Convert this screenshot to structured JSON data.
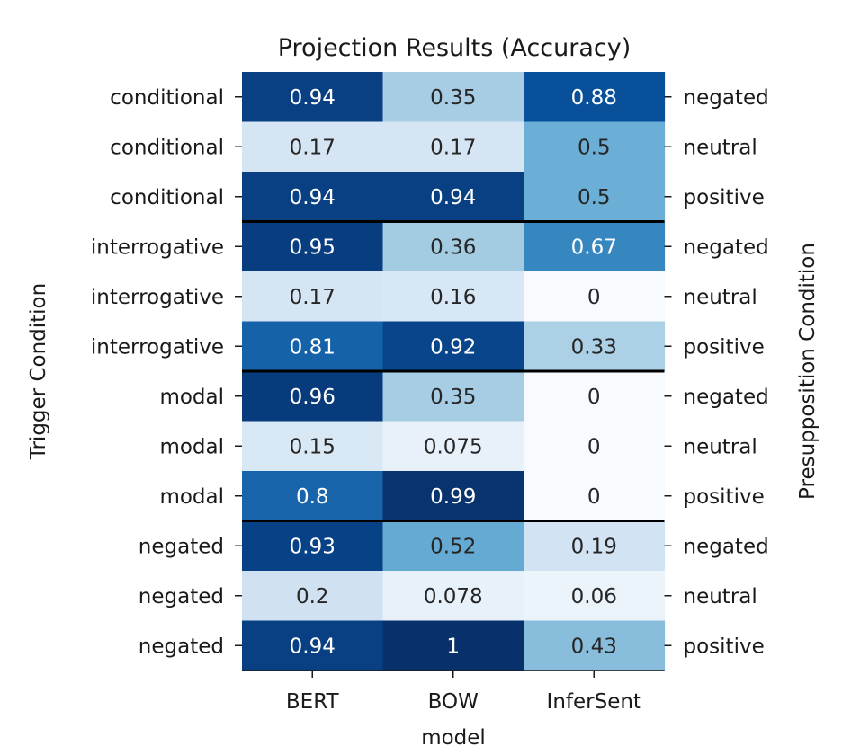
{
  "chart_data": {
    "type": "heatmap",
    "title": "Projection Results (Accuracy)",
    "xlabel": "model",
    "ylabel": "Trigger Condition",
    "ylabel_right": "Presupposition Condition",
    "columns": [
      "BERT",
      "BOW",
      "InferSent"
    ],
    "row_labels_left": [
      "conditional",
      "conditional",
      "conditional",
      "interrogative",
      "interrogative",
      "interrogative",
      "modal",
      "modal",
      "modal",
      "negated",
      "negated",
      "negated"
    ],
    "row_labels_right": [
      "negated",
      "neutral",
      "positive",
      "negated",
      "neutral",
      "positive",
      "negated",
      "neutral",
      "positive",
      "negated",
      "neutral",
      "positive"
    ],
    "values": [
      [
        0.94,
        0.35,
        0.88
      ],
      [
        0.17,
        0.17,
        0.5
      ],
      [
        0.94,
        0.94,
        0.5
      ],
      [
        0.95,
        0.36,
        0.67
      ],
      [
        0.17,
        0.16,
        0
      ],
      [
        0.81,
        0.92,
        0.33
      ],
      [
        0.96,
        0.35,
        0
      ],
      [
        0.15,
        0.075,
        0
      ],
      [
        0.8,
        0.99,
        0
      ],
      [
        0.93,
        0.52,
        0.19
      ],
      [
        0.2,
        0.078,
        0.06
      ],
      [
        0.94,
        1,
        0.43
      ]
    ],
    "cell_labels": [
      [
        "0.94",
        "0.35",
        "0.88"
      ],
      [
        "0.17",
        "0.17",
        "0.5"
      ],
      [
        "0.94",
        "0.94",
        "0.5"
      ],
      [
        "0.95",
        "0.36",
        "0.67"
      ],
      [
        "0.17",
        "0.16",
        "0"
      ],
      [
        "0.81",
        "0.92",
        "0.33"
      ],
      [
        "0.96",
        "0.35",
        "0"
      ],
      [
        "0.15",
        "0.075",
        "0"
      ],
      [
        "0.8",
        "0.99",
        "0"
      ],
      [
        "0.93",
        "0.52",
        "0.19"
      ],
      [
        "0.2",
        "0.078",
        "0.06"
      ],
      [
        "0.94",
        "1",
        "0.43"
      ]
    ],
    "group_size": 3,
    "colormap": "Blues",
    "vmin": 0,
    "vmax": 1,
    "colorbar": false
  }
}
